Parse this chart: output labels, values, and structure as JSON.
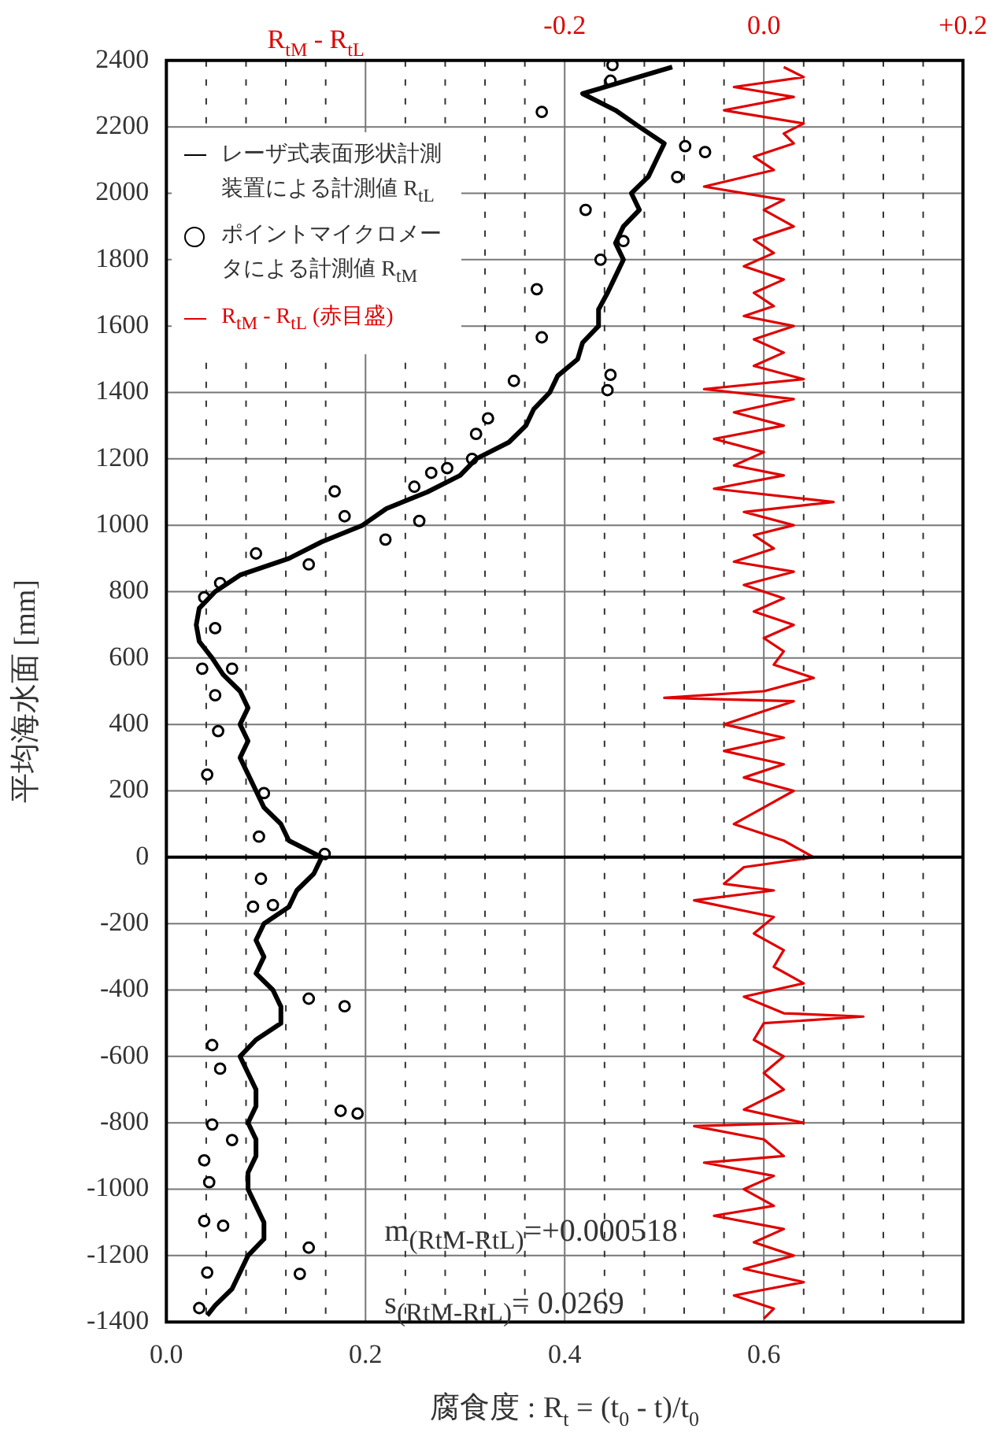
{
  "chart_data": {
    "type": "line",
    "xlabel": "腐食度 : R$_{t}$ = (t$_{0}$ - t)/t$_{0}$",
    "ylabel": "平均海水面 [mm]",
    "x2label": "R$_{tM}$ - R$_{tL}$",
    "xlim": [
      0,
      0.8
    ],
    "xticks": [
      {
        "value": 0,
        "label": "0.0"
      },
      {
        "value": 0.04,
        "label": null
      },
      {
        "value": 0.08,
        "label": null
      },
      {
        "value": 0.12,
        "label": null
      },
      {
        "value": 0.16,
        "label": null
      },
      {
        "value": 0.2,
        "label": "0.2"
      },
      {
        "value": 0.24,
        "label": null
      },
      {
        "value": 0.28,
        "label": null
      },
      {
        "value": 0.32,
        "label": null
      },
      {
        "value": 0.36,
        "label": null
      },
      {
        "value": 0.4,
        "label": "0.4"
      },
      {
        "value": 0.44,
        "label": null
      },
      {
        "value": 0.48,
        "label": null
      },
      {
        "value": 0.52,
        "label": null
      },
      {
        "value": 0.56,
        "label": null
      },
      {
        "value": 0.6,
        "label": "0.6"
      },
      {
        "value": 0.64,
        "label": null
      },
      {
        "value": 0.68,
        "label": null
      },
      {
        "value": 0.72,
        "label": null
      },
      {
        "value": 0.76,
        "label": null
      }
    ],
    "x2lim": [
      -0.6,
      0.2
    ],
    "x2ticks": [
      {
        "value": -0.2,
        "label": "-0.2"
      },
      {
        "value": 0,
        "label": "0.0"
      },
      {
        "value": 0.2,
        "label": "+0.2"
      }
    ],
    "ylim": [
      -1400,
      2400
    ],
    "yticks": [
      -1400,
      -1200,
      -1000,
      -800,
      -600,
      -400,
      -200,
      0,
      200,
      400,
      600,
      800,
      1000,
      1200,
      1400,
      1600,
      1800,
      2000,
      2200,
      2400
    ],
    "grid": true,
    "legend": "top left",
    "ref_lines": [
      {
        "axis": "y",
        "value": 0,
        "color": "#000000"
      }
    ],
    "annotations": [
      "m$_{(RtM-RtL)}$=+0.000518",
      "s$_{(RtM-RtL)}$= 0.0269"
    ],
    "series": [
      {
        "name": "レーザ式表面形状計測装置による計測値 R$_{tL}$",
        "marker": "none",
        "color": "#000000",
        "x": [
          0.508,
          0.418,
          0.451,
          0.475,
          0.5,
          0.492,
          0.484,
          0.467,
          0.475,
          0.459,
          0.451,
          0.459,
          0.451,
          0.443,
          0.434,
          0.434,
          0.418,
          0.413,
          0.393,
          0.385,
          0.369,
          0.361,
          0.344,
          0.311,
          0.295,
          0.262,
          0.221,
          0.197,
          0.156,
          0.123,
          0.074,
          0.049,
          0.033,
          0.03,
          0.033,
          0.046,
          0.057,
          0.074,
          0.082,
          0.074,
          0.082,
          0.074,
          0.082,
          0.09,
          0.098,
          0.115,
          0.123,
          0.156,
          0.148,
          0.131,
          0.123,
          0.098,
          0.09,
          0.098,
          0.09,
          0.107,
          0.115,
          0.115,
          0.09,
          0.074,
          0.082,
          0.09,
          0.09,
          0.082,
          0.09,
          0.09,
          0.082,
          0.082,
          0.09,
          0.098,
          0.098,
          0.082,
          0.074,
          0.066,
          0.049,
          0.041
        ],
        "values": [
          2380,
          2300,
          2250,
          2200,
          2150,
          2100,
          2050,
          2000,
          1950,
          1900,
          1850,
          1800,
          1750,
          1700,
          1650,
          1600,
          1550,
          1500,
          1450,
          1400,
          1350,
          1300,
          1250,
          1200,
          1150,
          1100,
          1050,
          1000,
          950,
          900,
          850,
          800,
          750,
          700,
          650,
          600,
          550,
          500,
          450,
          400,
          350,
          300,
          250,
          200,
          150,
          100,
          50,
          0,
          -50,
          -100,
          -150,
          -200,
          -250,
          -300,
          -350,
          -400,
          -450,
          -500,
          -550,
          -600,
          -650,
          -700,
          -750,
          -800,
          -850,
          -900,
          -950,
          -1000,
          -1050,
          -1100,
          -1150,
          -1200,
          -1250,
          -1300,
          -1350,
          -1380
        ]
      },
      {
        "name": "ポイントマイクロメータによる計測値 R$_{tM}$",
        "type": "scatter",
        "marker": "circle",
        "color": "#000000",
        "x": [
          0.448,
          0.446,
          0.377,
          0.521,
          0.541,
          0.513,
          0.421,
          0.459,
          0.436,
          0.372,
          0.377,
          0.446,
          0.443,
          0.349,
          0.311,
          0.323,
          0.307,
          0.266,
          0.282,
          0.249,
          0.169,
          0.179,
          0.22,
          0.254,
          0.09,
          0.143,
          0.054,
          0.038,
          0.049,
          0.036,
          0.066,
          0.049,
          0.052,
          0.041,
          0.098,
          0.093,
          0.159,
          0.095,
          0.087,
          0.107,
          0.143,
          0.179,
          0.046,
          0.054,
          0.175,
          0.192,
          0.046,
          0.066,
          0.038,
          0.043,
          0.038,
          0.057,
          0.143,
          0.041,
          0.134,
          0.033
        ],
        "values": [
          2386,
          2339,
          2245,
          2142,
          2124,
          2049,
          1950,
          1856,
          1800,
          1711,
          1566,
          1453,
          1407,
          1435,
          1275,
          1322,
          1200,
          1158,
          1172,
          1116,
          1102,
          1027,
          957,
          1013,
          915,
          882,
          826,
          783,
          690,
          568,
          568,
          488,
          380,
          249,
          193,
          62,
          10,
          -65,
          -149,
          -144,
          -426,
          -449,
          -566,
          -637,
          -764,
          -772,
          -805,
          -852,
          -913,
          -979,
          -1096,
          -1110,
          -1176,
          -1251,
          -1255,
          -1358
        ]
      },
      {
        "name": "R$_{tM}$ - R$_{tL}$ (赤目盛)",
        "marker": "none",
        "axis": "x2",
        "color": "#e00000",
        "x": [
          0.02,
          0.04,
          -0.03,
          0.03,
          -0.04,
          0.04,
          0.02,
          0.03,
          -0.01,
          0.01,
          -0.06,
          0.02,
          0,
          0.03,
          -0.01,
          0.01,
          -0.02,
          0.02,
          -0.01,
          0.01,
          -0.02,
          0.03,
          -0.01,
          0.02,
          -0.01,
          0.04,
          -0.06,
          0.03,
          -0.03,
          0.02,
          -0.05,
          0,
          -0.03,
          0.02,
          -0.05,
          0.07,
          -0.02,
          0.03,
          -0.01,
          0.01,
          -0.03,
          0.03,
          -0.02,
          0.02,
          -0.01,
          0.03,
          0,
          0.02,
          0.01,
          0.05,
          0,
          -0.1,
          0.03,
          0,
          -0.04,
          0.02,
          -0.04,
          0.02,
          -0.02,
          0.03,
          0,
          -0.03,
          0.02,
          0.05,
          -0.02,
          -0.04,
          0.01,
          -0.07,
          0.01,
          -0.01,
          0.02,
          0.01,
          0.04,
          -0.02,
          0.02,
          0.1,
          0,
          -0.01,
          0.02,
          0,
          0.02,
          -0.02,
          0.04,
          -0.07,
          0,
          0.02,
          -0.06,
          0.01,
          -0.02,
          0.01,
          -0.05,
          0.02,
          -0.01,
          0.03,
          -0.02,
          0.04,
          -0.03,
          0.01,
          0
        ],
        "values": [
          2380,
          2350,
          2320,
          2290,
          2250,
          2210,
          2180,
          2150,
          2110,
          2070,
          2020,
          1980,
          1950,
          1900,
          1860,
          1820,
          1780,
          1740,
          1700,
          1660,
          1630,
          1600,
          1560,
          1520,
          1480,
          1440,
          1410,
          1380,
          1340,
          1300,
          1260,
          1220,
          1180,
          1150,
          1110,
          1070,
          1040,
          1000,
          970,
          930,
          890,
          860,
          820,
          780,
          740,
          700,
          660,
          620,
          580,
          540,
          500,
          480,
          470,
          440,
          400,
          360,
          320,
          280,
          240,
          200,
          150,
          100,
          50,
          0,
          -30,
          -80,
          -100,
          -130,
          -180,
          -230,
          -280,
          -330,
          -380,
          -420,
          -470,
          -480,
          -500,
          -550,
          -600,
          -650,
          -700,
          -760,
          -800,
          -810,
          -850,
          -900,
          -920,
          -960,
          -1000,
          -1050,
          -1080,
          -1120,
          -1160,
          -1200,
          -1240,
          -1280,
          -1320,
          -1360,
          -1390
        ]
      }
    ]
  }
}
